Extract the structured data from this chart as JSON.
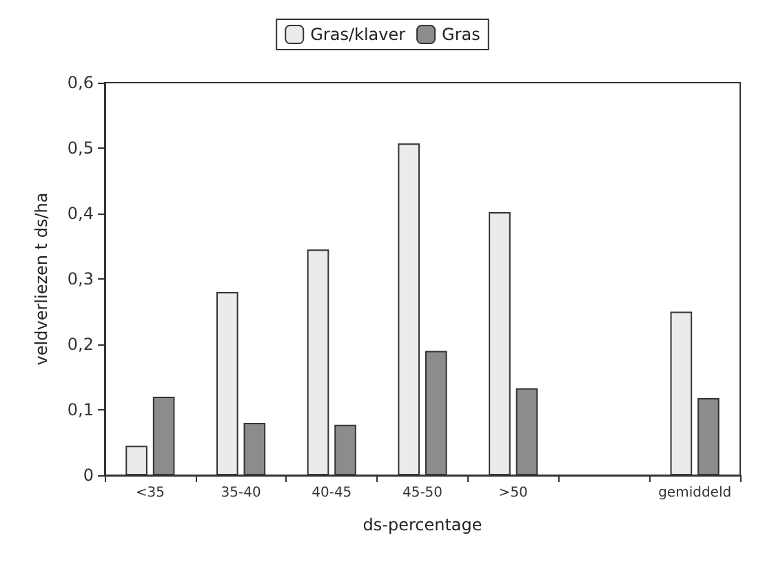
{
  "chart_data": {
    "type": "bar",
    "categories": [
      "<35",
      "35-40",
      "40-45",
      "45-50",
      ">50",
      null,
      "gemiddeld"
    ],
    "series": [
      {
        "name": "Gras/klaver",
        "color": "#ebebeb",
        "values": [
          0.045,
          0.28,
          0.345,
          0.507,
          0.402,
          null,
          0.25
        ]
      },
      {
        "name": "Gras",
        "color": "#8c8c8c",
        "values": [
          0.12,
          0.08,
          0.077,
          0.19,
          0.133,
          null,
          0.118
        ]
      }
    ],
    "xlabel": "ds-percentage",
    "ylabel": "veldverliezen t ds/ha",
    "ylim": [
      0,
      0.6
    ],
    "yticks": [
      {
        "value": 0,
        "label": "0"
      },
      {
        "value": 0.1,
        "label": "0,1"
      },
      {
        "value": 0.2,
        "label": "0,2"
      },
      {
        "value": 0.3,
        "label": "0,3"
      },
      {
        "value": 0.4,
        "label": "0,4"
      },
      {
        "value": 0.5,
        "label": "0,5"
      },
      {
        "value": 0.6,
        "label": "0,6"
      }
    ],
    "grid": false,
    "legend": "top"
  }
}
